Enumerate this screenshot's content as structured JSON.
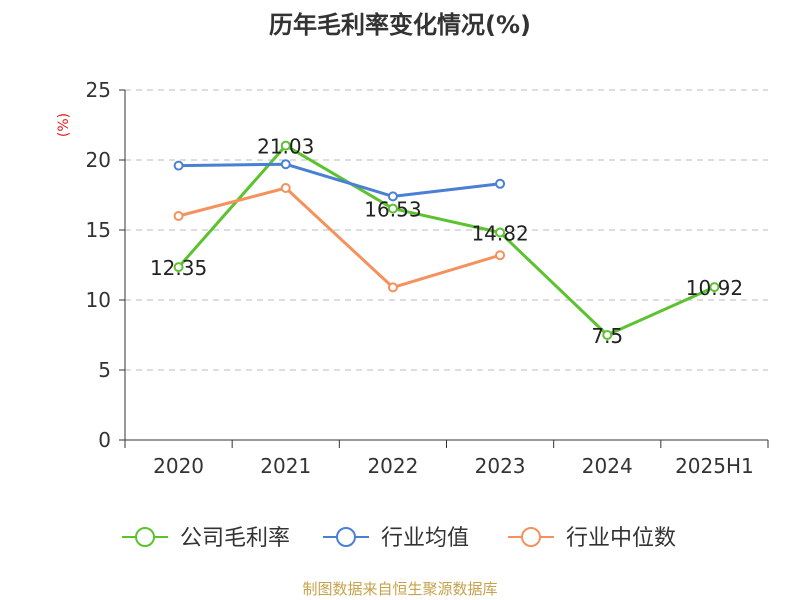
{
  "chart_data": {
    "type": "line",
    "title": "历年毛利率变化情况(%)",
    "ylabel": "(%)",
    "categories": [
      "2020",
      "2021",
      "2022",
      "2023",
      "2024",
      "2025H1"
    ],
    "ylim": [
      0,
      25
    ],
    "yticks": [
      0,
      5,
      10,
      15,
      20,
      25
    ],
    "grid": true,
    "legend_position": "bottom",
    "series": [
      {
        "name": "公司毛利率",
        "color": "#5cc22f",
        "values": [
          12.35,
          21.03,
          16.53,
          14.82,
          7.5,
          10.92
        ],
        "labels": [
          "12.35",
          "21.03",
          "16.53",
          "14.82",
          "7.5",
          "10.92"
        ]
      },
      {
        "name": "行业均值",
        "color": "#4a7fd6",
        "values": [
          19.6,
          19.7,
          17.4,
          18.3,
          null,
          null
        ]
      },
      {
        "name": "行业中位数",
        "color": "#f5915c",
        "values": [
          16.0,
          18.0,
          10.9,
          13.2,
          null,
          null
        ]
      }
    ]
  },
  "footer": {
    "source": "制图数据来自恒生聚源数据库"
  }
}
